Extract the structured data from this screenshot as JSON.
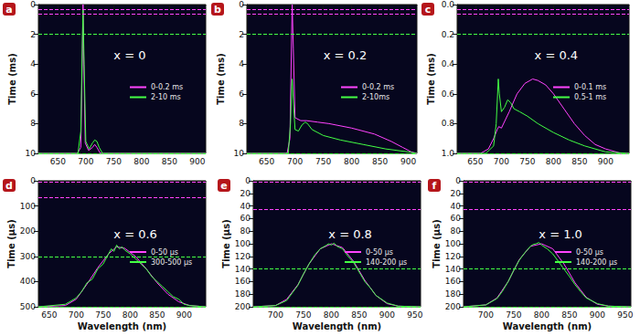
{
  "chart_data": [
    {
      "type": "line",
      "panel_label": "a",
      "annotation": "x = 0",
      "y_label": "Time (ms)",
      "xlim": [
        615,
        915
      ],
      "xticks": [
        650,
        700,
        750,
        800,
        850,
        900
      ],
      "ylim": [
        0,
        10
      ],
      "yticks": [
        0,
        2,
        4,
        6,
        8,
        10
      ],
      "series": [
        {
          "name": "0-0.2 ms",
          "color": "#ff44ff",
          "line_style": "solid",
          "hlines": [
            0.3,
            0.6
          ],
          "x": [
            615,
            685,
            691,
            694,
            695,
            696,
            699,
            705,
            712,
            716,
            720,
            726,
            915
          ],
          "values": [
            10,
            10,
            9.6,
            3,
            0,
            3,
            9.3,
            9.8,
            9.6,
            9.4,
            9.6,
            10,
            10
          ]
        },
        {
          "name": "2-10 ms",
          "color": "#44ff44",
          "line_style": "solid",
          "hlines": [
            2,
            10
          ],
          "x": [
            615,
            686,
            691,
            694,
            695,
            697,
            700,
            706,
            712,
            716,
            720,
            724,
            730,
            915
          ],
          "values": [
            10,
            10,
            8.5,
            2,
            0.3,
            4,
            9.2,
            9.7,
            9.3,
            9.1,
            9.2,
            9.6,
            10,
            10
          ]
        }
      ]
    },
    {
      "type": "line",
      "panel_label": "b",
      "annotation": "x = 0.2",
      "y_label": "Time (ms)",
      "xlim": [
        615,
        915
      ],
      "xticks": [
        650,
        700,
        750,
        800,
        850,
        900
      ],
      "ylim": [
        0,
        10
      ],
      "yticks": [
        0,
        2,
        4,
        6,
        8,
        10
      ],
      "series": [
        {
          "name": "0-0.2 ms",
          "color": "#ff44ff",
          "line_style": "solid",
          "hlines": [
            0.3,
            0.6
          ],
          "x": [
            615,
            686,
            691,
            694,
            695,
            697,
            700,
            710,
            720,
            740,
            760,
            800,
            840,
            870,
            890,
            905,
            915
          ],
          "values": [
            10,
            10,
            9,
            2,
            0,
            3,
            7.6,
            7.8,
            7.8,
            7.9,
            8.0,
            8.3,
            8.7,
            9.2,
            9.6,
            9.9,
            10
          ]
        },
        {
          "name": "2-10ms",
          "color": "#44ff44",
          "line_style": "solid",
          "hlines": [
            2,
            10
          ],
          "x": [
            615,
            688,
            692,
            694,
            695,
            697,
            700,
            706,
            712,
            718,
            722,
            730,
            750,
            780,
            820,
            860,
            900,
            915
          ],
          "values": [
            10,
            10,
            8,
            5.5,
            5,
            6.5,
            8.4,
            8.5,
            8.1,
            7.9,
            8.0,
            8.4,
            8.8,
            9.1,
            9.4,
            9.7,
            9.9,
            10
          ]
        }
      ]
    },
    {
      "type": "line",
      "panel_label": "c",
      "annotation": "x = 0.4",
      "y_label": "Time (ms)",
      "xlim": [
        615,
        945
      ],
      "xticks": [
        650,
        700,
        750,
        800,
        850,
        900
      ],
      "ylim": [
        0,
        1
      ],
      "yticks": [
        {
          "value": 0,
          "label": "0.0"
        },
        0.2,
        0.4,
        0.6,
        0.8,
        {
          "value": 1,
          "label": "1.0"
        }
      ],
      "series": [
        {
          "name": "0-0.1 ms",
          "color": "#ff44ff",
          "line_style": "solid",
          "hlines": [
            0.03,
            0.06
          ],
          "x": [
            615,
            660,
            675,
            685,
            692,
            695,
            700,
            715,
            730,
            745,
            760,
            770,
            785,
            800,
            820,
            840,
            860,
            880,
            900,
            930,
            945
          ],
          "values": [
            1,
            1,
            0.97,
            0.9,
            0.84,
            0.82,
            0.83,
            0.72,
            0.6,
            0.53,
            0.5,
            0.51,
            0.54,
            0.6,
            0.7,
            0.8,
            0.88,
            0.94,
            0.97,
            1,
            1
          ]
        },
        {
          "name": "0.5-1 ms",
          "color": "#44ff44",
          "line_style": "solid",
          "hlines": [
            0.2,
            1
          ],
          "x": [
            615,
            670,
            685,
            690,
            694,
            696,
            700,
            706,
            712,
            718,
            724,
            735,
            750,
            770,
            800,
            830,
            860,
            900,
            945
          ],
          "values": [
            1,
            1,
            0.95,
            0.8,
            0.5,
            0.6,
            0.72,
            0.69,
            0.64,
            0.66,
            0.7,
            0.72,
            0.75,
            0.8,
            0.86,
            0.91,
            0.95,
            0.99,
            1
          ]
        }
      ]
    },
    {
      "type": "line",
      "panel_label": "d",
      "annotation": "x = 0.6",
      "y_label": "Time (μs)",
      "x_label": "Wavelength (nm)",
      "xlim": [
        630,
        940
      ],
      "xticks": [
        650,
        700,
        750,
        800,
        850,
        900
      ],
      "ylim": [
        0,
        500
      ],
      "yticks": [
        0,
        100,
        200,
        300,
        400,
        500
      ],
      "series": [
        {
          "name": "0-50 μs",
          "color": "#ff44ff",
          "line_style": "solid",
          "hlines": [
            5,
            65
          ],
          "x": [
            630,
            680,
            700,
            720,
            740,
            760,
            775,
            790,
            810,
            830,
            850,
            870,
            890,
            910,
            940
          ],
          "values": [
            500,
            495,
            470,
            410,
            345,
            290,
            262,
            268,
            300,
            350,
            405,
            450,
            480,
            495,
            500
          ]
        },
        {
          "name": "300-500 μs",
          "color": "#44ff44",
          "line_style": "solid",
          "hlines": [
            300,
            500
          ],
          "x": [
            630,
            680,
            700,
            710,
            720,
            730,
            740,
            750,
            760,
            765,
            770,
            775,
            780,
            785,
            790,
            800,
            810,
            820,
            830,
            840,
            850,
            860,
            870,
            880,
            890,
            900,
            910,
            940
          ],
          "values": [
            500,
            490,
            465,
            440,
            405,
            390,
            350,
            330,
            290,
            270,
            280,
            255,
            270,
            262,
            275,
            290,
            310,
            330,
            350,
            380,
            400,
            420,
            440,
            460,
            470,
            490,
            495,
            500
          ]
        }
      ]
    },
    {
      "type": "line",
      "panel_label": "e",
      "annotation": "x = 0.8",
      "y_label": "Time (μs)",
      "x_label": "Wavelength (nm)",
      "xlim": [
        660,
        960
      ],
      "xticks": [
        700,
        750,
        800,
        850,
        900,
        950
      ],
      "ylim": [
        0,
        200
      ],
      "yticks": [
        0,
        20,
        40,
        60,
        80,
        100,
        120,
        140,
        160,
        180,
        200
      ],
      "series": [
        {
          "name": "0-50 μs",
          "color": "#ff44ff",
          "line_style": "solid",
          "hlines": [
            2,
            46
          ],
          "x": [
            660,
            700,
            720,
            740,
            760,
            780,
            800,
            820,
            840,
            860,
            880,
            900,
            920,
            960
          ],
          "values": [
            200,
            198,
            188,
            165,
            132,
            108,
            100,
            106,
            128,
            158,
            182,
            195,
            199,
            200
          ]
        },
        {
          "name": "140-200 μs",
          "color": "#44ff44",
          "line_style": "solid",
          "hlines": [
            140,
            200
          ],
          "x": [
            660,
            700,
            720,
            730,
            740,
            750,
            760,
            770,
            780,
            790,
            795,
            800,
            805,
            810,
            820,
            830,
            840,
            850,
            860,
            870,
            880,
            900,
            920,
            960
          ],
          "values": [
            200,
            198,
            190,
            178,
            166,
            148,
            132,
            118,
            108,
            103,
            100,
            102,
            99,
            104,
            108,
            120,
            130,
            145,
            160,
            170,
            182,
            194,
            199,
            200
          ]
        }
      ]
    },
    {
      "type": "line",
      "panel_label": "f",
      "annotation": "x = 1.0",
      "y_label": "Time (μs)",
      "x_label": "Wavelength (nm)",
      "xlim": [
        660,
        960
      ],
      "xticks": [
        700,
        750,
        800,
        850,
        900,
        950
      ],
      "ylim": [
        0,
        200
      ],
      "yticks": [
        0,
        20,
        40,
        60,
        80,
        100,
        120,
        140,
        160,
        180,
        200
      ],
      "series": [
        {
          "name": "0-50 μs",
          "color": "#ff44ff",
          "line_style": "solid",
          "hlines": [
            2,
            46
          ],
          "x": [
            660,
            700,
            720,
            740,
            760,
            780,
            800,
            820,
            840,
            860,
            880,
            900,
            920,
            960
          ],
          "values": [
            200,
            197,
            186,
            160,
            125,
            104,
            100,
            108,
            132,
            162,
            185,
            196,
            199,
            200
          ]
        },
        {
          "name": "140-200 μs",
          "color": "#44ff44",
          "line_style": "solid",
          "hlines": [
            140,
            200
          ],
          "x": [
            660,
            700,
            720,
            730,
            740,
            750,
            760,
            770,
            780,
            785,
            790,
            795,
            800,
            810,
            820,
            830,
            840,
            850,
            860,
            870,
            880,
            900,
            920,
            960
          ],
          "values": [
            200,
            197,
            187,
            175,
            160,
            142,
            126,
            114,
            104,
            101,
            100,
            98,
            102,
            108,
            116,
            128,
            140,
            152,
            165,
            176,
            186,
            195,
            199,
            200
          ]
        }
      ]
    }
  ]
}
